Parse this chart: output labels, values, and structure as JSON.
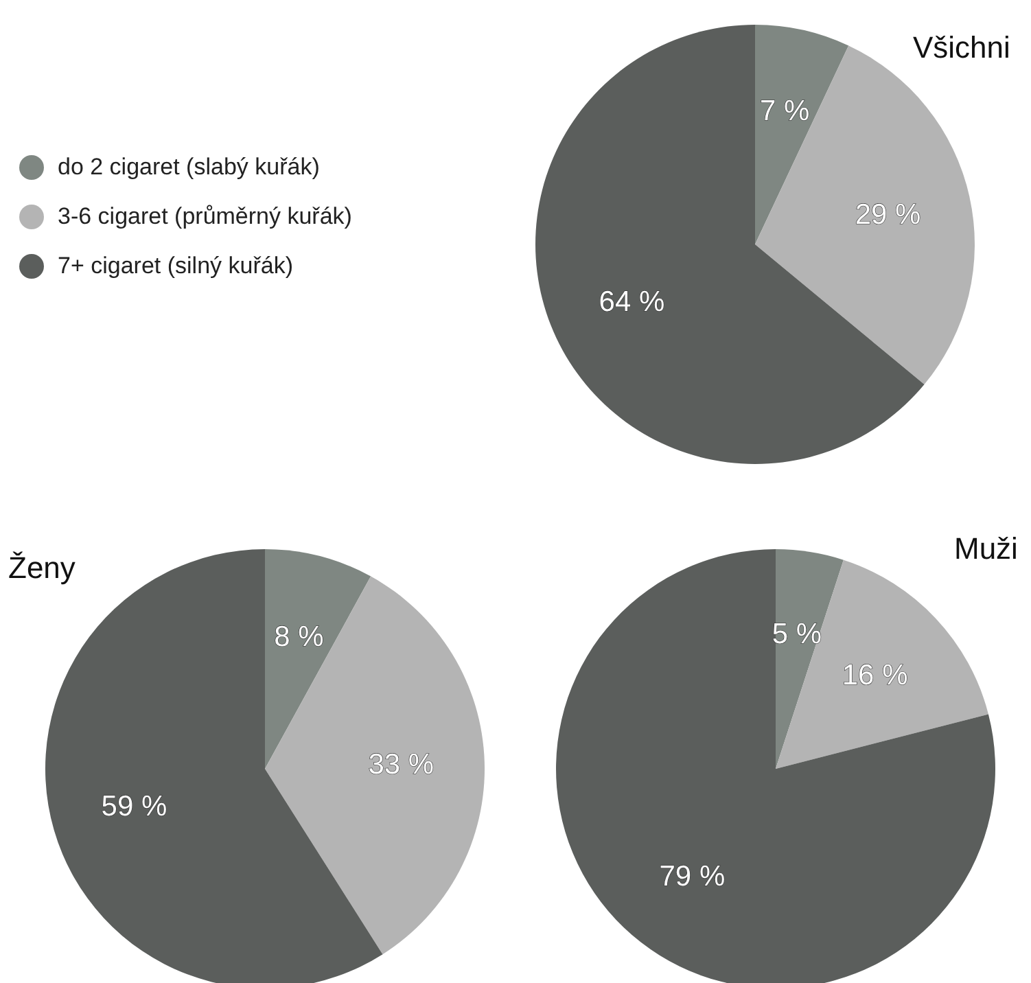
{
  "chart_data": [
    {
      "type": "pie",
      "title": "Všichni",
      "categories": [
        "do 2 cigaret (slabý kuřák)",
        "3-6 cigaret (průměrný kuřák)",
        "7+ cigaret (silný kuřák)"
      ],
      "values": [
        7,
        29,
        64
      ],
      "value_labels": [
        "7 %",
        "29 %",
        "64 %"
      ],
      "colors": [
        "#7f8782",
        "#b4b4b4",
        "#5b5e5c"
      ],
      "legend": "left"
    },
    {
      "type": "pie",
      "title": "Ženy",
      "categories": [
        null,
        null,
        null
      ],
      "values": [
        8,
        33,
        59
      ],
      "value_labels": [
        "8 %",
        "33 %",
        "59 %"
      ],
      "colors": [
        "#7f8782",
        "#b4b4b4",
        "#5b5e5c"
      ]
    },
    {
      "type": "pie",
      "title": "Muži",
      "categories": [
        null,
        null,
        null
      ],
      "values": [
        5,
        16,
        79
      ],
      "value_labels": [
        "5 %",
        "16 %",
        "79 %"
      ],
      "colors": [
        "#7f8782",
        "#b4b4b4",
        "#5b5e5c"
      ]
    }
  ]
}
